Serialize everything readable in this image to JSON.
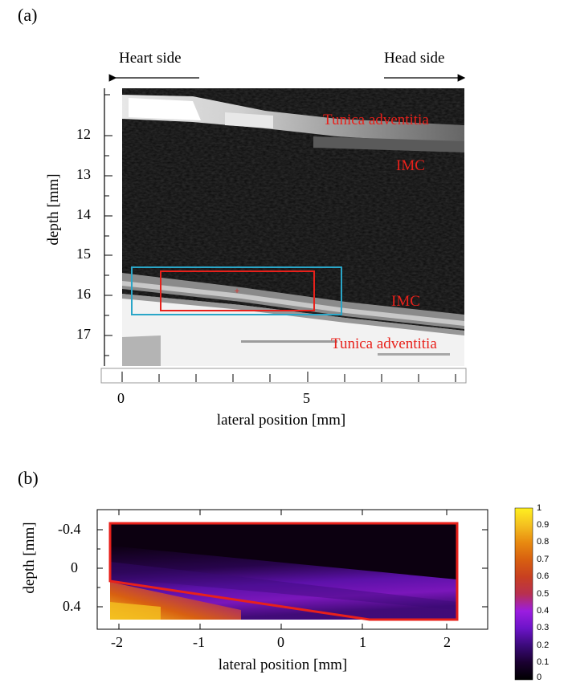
{
  "panel_a": {
    "label": "(a)",
    "heart_side": "Heart side",
    "head_side": "Head side",
    "ylabel": "depth [mm]",
    "xlabel": "lateral position [mm]",
    "y_ticks": [
      "12",
      "13",
      "14",
      "15",
      "16",
      "17"
    ],
    "x_ticks": [
      "0",
      "5"
    ],
    "annotations": {
      "tunica_top": "Tunica adventitia",
      "imc_top": "IMC",
      "imc_bottom": "IMC",
      "tunica_bottom": "Tunica adventitia"
    },
    "annotation_color": "#e8211b",
    "box_colors": {
      "outer": "#2aa6c8",
      "inner": "#e8211b"
    }
  },
  "panel_b": {
    "label": "(b)",
    "ylabel": "depth [mm]",
    "xlabel": "lateral position [mm]",
    "y_ticks": [
      "-0.4",
      "0",
      "0.4"
    ],
    "x_ticks": [
      "-2",
      "-1",
      "0",
      "1",
      "2"
    ],
    "colorbar_ticks": [
      "1",
      "0.9",
      "0.8",
      "0.7",
      "0.6",
      "0.5",
      "0.4",
      "0.3",
      "0.2",
      "0.1",
      "0"
    ],
    "region_color": "#e8211b"
  }
}
